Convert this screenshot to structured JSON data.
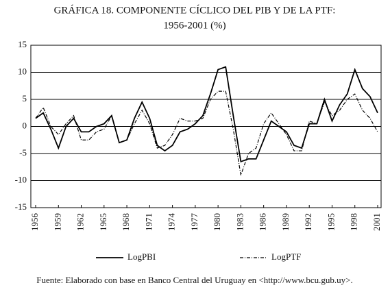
{
  "chart_data": {
    "type": "line",
    "title": "GRÁFICA 18. COMPONENTE CÍCLICO DEL PIB Y DE LA PTF:",
    "subtitle": "1956-2001 (%)",
    "x": [
      1956,
      1957,
      1958,
      1959,
      1960,
      1961,
      1962,
      1963,
      1964,
      1965,
      1966,
      1967,
      1968,
      1969,
      1970,
      1971,
      1972,
      1973,
      1974,
      1975,
      1976,
      1977,
      1978,
      1979,
      1980,
      1981,
      1982,
      1983,
      1984,
      1985,
      1986,
      1987,
      1988,
      1989,
      1990,
      1991,
      1992,
      1993,
      1994,
      1995,
      1996,
      1997,
      1998,
      1999,
      2000,
      2001
    ],
    "series": [
      {
        "name": "LogPBI",
        "color": "#000000",
        "dash": "solid",
        "values": [
          1.5,
          2.5,
          -0.5,
          -4,
          0,
          1.5,
          -1,
          -1,
          0,
          0.5,
          2,
          -3,
          -2.5,
          1.5,
          4.5,
          1.5,
          -3.5,
          -4.5,
          -3.5,
          -1,
          -0.5,
          0.5,
          2,
          6,
          10.5,
          11,
          2,
          -6.5,
          -6,
          -6,
          -2.5,
          1,
          0,
          -1,
          -3.5,
          -4,
          0.5,
          0.5,
          5,
          1,
          4,
          6,
          10.5,
          7,
          5.5,
          2.5
        ]
      },
      {
        "name": "LogPTF",
        "color": "#000000",
        "dash": "dashdot",
        "values": [
          1.5,
          3.5,
          0,
          -1.5,
          0.5,
          2,
          -2.5,
          -2.5,
          -1,
          -0.5,
          2,
          -3,
          -2.5,
          0.5,
          3,
          0.5,
          -4,
          -3.5,
          -1.5,
          1.5,
          1,
          1,
          1.5,
          5,
          6.5,
          6.5,
          -0.5,
          -9,
          -5,
          -4,
          0.5,
          2.5,
          0.5,
          -1.5,
          -4.5,
          -4.5,
          1,
          0.5,
          4.5,
          2,
          3,
          5,
          6,
          3,
          1.5,
          -1
        ]
      }
    ],
    "xlim": [
      1956,
      2001
    ],
    "xticks": [
      1956,
      1959,
      1962,
      1965,
      1968,
      1971,
      1974,
      1977,
      1980,
      1983,
      1986,
      1989,
      1992,
      1995,
      1998,
      2001
    ],
    "ylim": [
      -15,
      15
    ],
    "yticks": [
      15,
      10,
      5,
      0,
      -5,
      -10,
      -15
    ],
    "grid": true,
    "legend": "bottom",
    "source": "Fuente: Elaborado con base en Banco Central del Uruguay en <http://www.bcu.gub.uy>."
  }
}
